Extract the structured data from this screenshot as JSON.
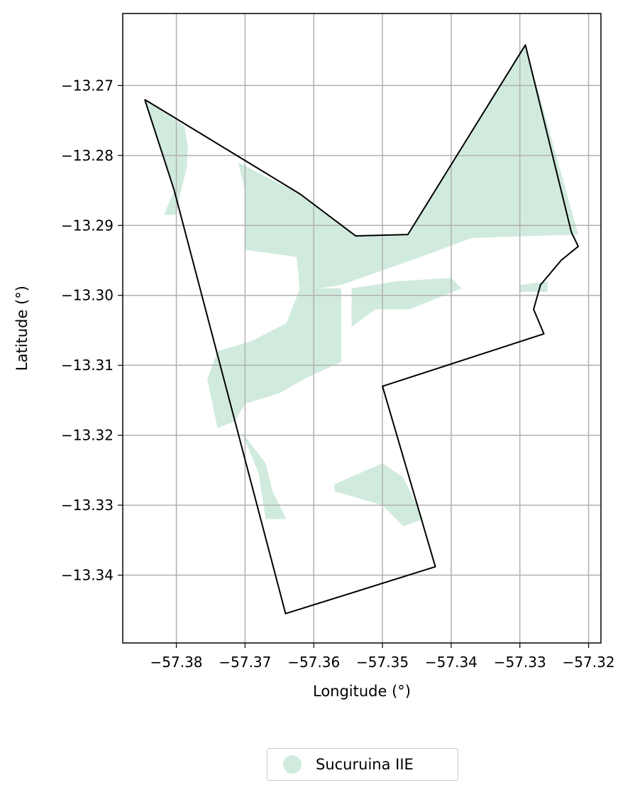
{
  "chart_data": {
    "type": "map",
    "xlabel": "Longitude (°)",
    "ylabel": "Latitude (°)",
    "xlim": [
      -57.3878,
      -57.3182
    ],
    "ylim": [
      -13.3497,
      -13.2597
    ],
    "grid": true,
    "x_ticks": [
      -57.38,
      -57.37,
      -57.36,
      -57.35,
      -57.34,
      -57.33,
      -57.32
    ],
    "x_tick_labels": [
      "−57.38",
      "−57.37",
      "−57.36",
      "−57.35",
      "−57.34",
      "−57.33",
      "−57.32"
    ],
    "y_ticks": [
      -13.27,
      -13.28,
      -13.29,
      -13.3,
      -13.31,
      -13.32,
      -13.33,
      -13.34
    ],
    "y_tick_labels": [
      "−13.27",
      "−13.28",
      "−13.29",
      "−13.30",
      "−13.31",
      "−13.32",
      "−13.33",
      "−13.34"
    ],
    "boundary": [
      [
        -57.3846,
        -13.272
      ],
      [
        -57.3803,
        -13.285
      ],
      [
        -57.3641,
        -13.3455
      ],
      [
        -57.3423,
        -13.3388
      ],
      [
        -57.35,
        -13.313
      ],
      [
        -57.3265,
        -13.3055
      ],
      [
        -57.328,
        -13.302
      ],
      [
        -57.327,
        -13.2985
      ],
      [
        -57.324,
        -13.295
      ],
      [
        -57.3215,
        -13.293
      ],
      [
        -57.3225,
        -13.291
      ],
      [
        -57.3292,
        -13.2642
      ],
      [
        -57.3463,
        -13.2913
      ],
      [
        -57.3539,
        -13.2915
      ],
      [
        -57.362,
        -13.2855
      ],
      [
        -57.3846,
        -13.272
      ]
    ],
    "series": [
      {
        "name": "Sucuruina IIE",
        "color": "#d0ebde",
        "polygons": [
          [
            [
              -57.3846,
              -13.272
            ],
            [
              -57.3788,
              -13.2758
            ],
            [
              -57.3783,
              -13.279
            ],
            [
              -57.3785,
              -13.2818
            ],
            [
              -57.3795,
              -13.2858
            ],
            [
              -57.38,
              -13.2885
            ],
            [
              -57.3818,
              -13.2885
            ],
            [
              -57.3803,
              -13.285
            ],
            [
              -57.3846,
              -13.272
            ]
          ],
          [
            [
              -57.371,
              -13.281
            ],
            [
              -57.362,
              -13.2855
            ],
            [
              -57.3539,
              -13.2915
            ],
            [
              -57.3463,
              -13.2913
            ],
            [
              -57.3292,
              -13.2642
            ],
            [
              -57.3215,
              -13.2913
            ],
            [
              -57.337,
              -13.2918
            ],
            [
              -57.343,
              -13.294
            ],
            [
              -57.356,
              -13.2985
            ],
            [
              -57.362,
              -13.2995
            ],
            [
              -57.3625,
              -13.2945
            ],
            [
              -57.37,
              -13.2935
            ],
            [
              -57.37,
              -13.285
            ],
            [
              -57.371,
              -13.281
            ]
          ],
          [
            [
              -57.362,
              -13.299
            ],
            [
              -57.356,
              -13.299
            ],
            [
              -57.356,
              -13.3095
            ],
            [
              -57.3615,
              -13.312
            ],
            [
              -57.365,
              -13.314
            ],
            [
              -57.37,
              -13.3155
            ],
            [
              -57.3715,
              -13.318
            ],
            [
              -57.374,
              -13.319
            ],
            [
              -57.3755,
              -13.312
            ],
            [
              -57.374,
              -13.308
            ],
            [
              -57.369,
              -13.3065
            ],
            [
              -57.364,
              -13.304
            ],
            [
              -57.362,
              -13.299
            ]
          ],
          [
            [
              -57.3545,
              -13.299
            ],
            [
              -57.348,
              -13.298
            ],
            [
              -57.34,
              -13.2975
            ],
            [
              -57.3385,
              -13.299
            ],
            [
              -57.346,
              -13.302
            ],
            [
              -57.351,
              -13.302
            ],
            [
              -57.3545,
              -13.3045
            ],
            [
              -57.3545,
              -13.299
            ]
          ],
          [
            [
              -57.33,
              -13.2985
            ],
            [
              -57.326,
              -13.298
            ],
            [
              -57.326,
              -13.2995
            ],
            [
              -57.33,
              -13.2995
            ],
            [
              -57.33,
              -13.2985
            ]
          ],
          [
            [
              -57.3705,
              -13.3195
            ],
            [
              -57.368,
              -13.3255
            ],
            [
              -57.367,
              -13.332
            ],
            [
              -57.364,
              -13.332
            ],
            [
              -57.366,
              -13.328
            ],
            [
              -57.367,
              -13.324
            ],
            [
              -57.3705,
              -13.3195
            ]
          ],
          [
            [
              -57.357,
              -13.327
            ],
            [
              -57.35,
              -13.324
            ],
            [
              -57.347,
              -13.326
            ],
            [
              -57.344,
              -13.332
            ],
            [
              -57.347,
              -13.333
            ],
            [
              -57.35,
              -13.33
            ],
            [
              -57.357,
              -13.328
            ],
            [
              -57.357,
              -13.327
            ]
          ]
        ]
      }
    ]
  },
  "legend": {
    "items": [
      {
        "label": "Sucuruina IIE",
        "color": "#d0ebde"
      }
    ]
  }
}
